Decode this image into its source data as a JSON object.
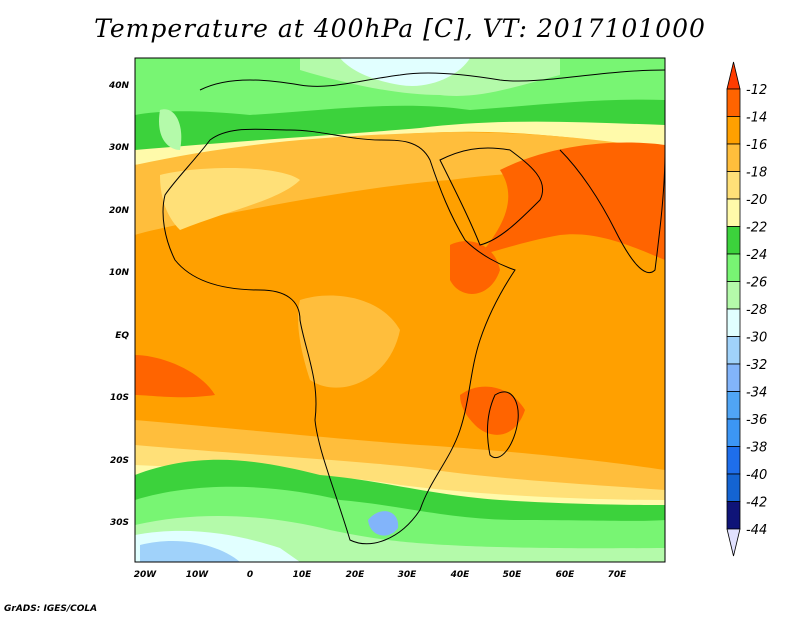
{
  "title": "Temperature at 400hPa [C], VT: 2017101000",
  "credit": "GrADS: IGES/COLA",
  "map": {
    "variable": "Temperature",
    "level": "400hPa",
    "units": "C",
    "valid_time": "2017101000",
    "lon_labels": [
      "20W",
      "10W",
      "0",
      "10E",
      "20E",
      "30E",
      "40E",
      "50E",
      "60E",
      "70E"
    ],
    "lat_labels": [
      "40N",
      "30N",
      "20N",
      "10N",
      "EQ",
      "10S",
      "20S",
      "30S"
    ]
  },
  "colorbar": {
    "labels": [
      "-12",
      "-14",
      "-16",
      "-18",
      "-20",
      "-22",
      "-24",
      "-26",
      "-28",
      "-30",
      "-32",
      "-34",
      "-36",
      "-38",
      "-40",
      "-42",
      "-44"
    ],
    "colors": [
      "#ff3c00",
      "#ff6400",
      "#ffa000",
      "#ffbe3c",
      "#ffe078",
      "#fffaaa",
      "#3cd23c",
      "#78f573",
      "#b4faaa",
      "#e1ffff",
      "#a0d2fa",
      "#82b4fa",
      "#50a5f5",
      "#3c96f5",
      "#1e6eeb",
      "#1464d2",
      "#0f1478",
      "#e1e1ff"
    ]
  }
}
